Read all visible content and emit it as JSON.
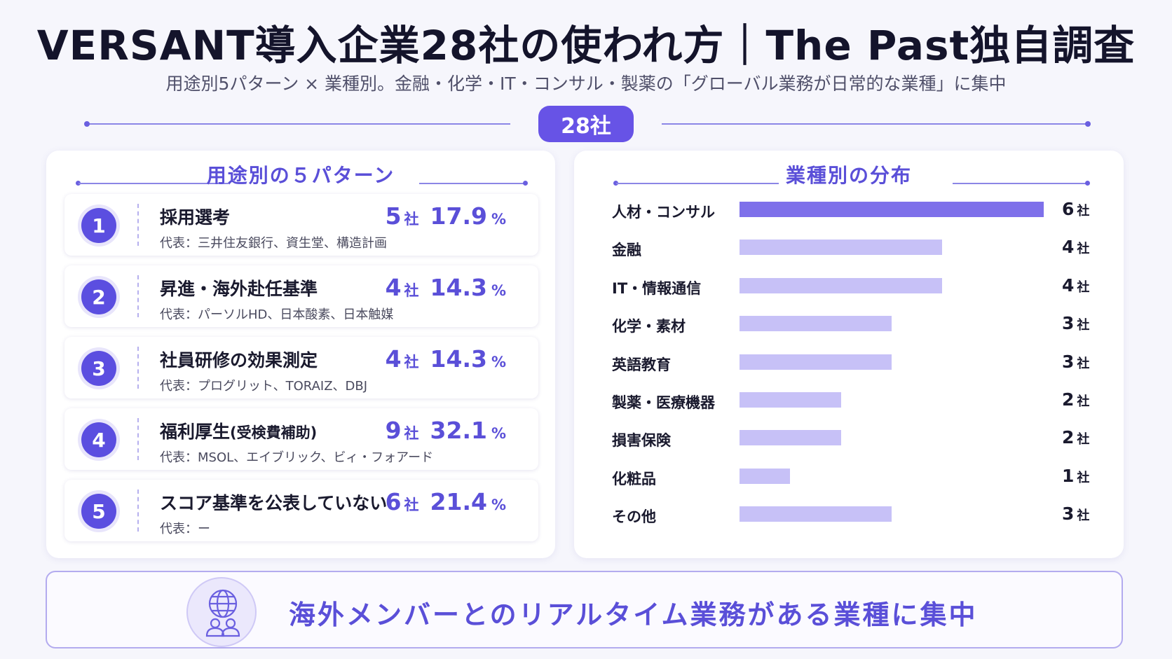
{
  "header": {
    "title": "VERSANT導入企業28社の使われ方｜The Past独自調査",
    "subtitle": "用途別5パターン × 業種別。金融・化学・IT・コンサル・製薬の「グローバル業務が日常的な業種」に集中",
    "total_badge": "28社"
  },
  "left_panel": {
    "title": "用途別の５パターン",
    "patterns": [
      {
        "num": "1",
        "name": "採用選考",
        "name_sub": "",
        "count": "5",
        "unit": "社",
        "percent": "17.9",
        "percent_unit": "%",
        "rep": "代表：三井住友銀行、資生堂、構造計画"
      },
      {
        "num": "2",
        "name": "昇進・海外赴任基準",
        "name_sub": "",
        "count": "4",
        "unit": "社",
        "percent": "14.3",
        "percent_unit": "%",
        "rep": "代表：パーソルHD、日本酸素、日本触媒"
      },
      {
        "num": "3",
        "name": "社員研修の効果測定",
        "name_sub": "",
        "count": "4",
        "unit": "社",
        "percent": "14.3",
        "percent_unit": "%",
        "rep": "代表：プログリット、TORAIZ、DBJ"
      },
      {
        "num": "4",
        "name": "福利厚生",
        "name_sub": "(受検費補助)",
        "count": "9",
        "unit": "社",
        "percent": "32.1",
        "percent_unit": "%",
        "rep": "代表：MSOL、エイブリック、ビィ・フォアード"
      },
      {
        "num": "5",
        "name": "スコア基準を公表していない",
        "name_sub": "",
        "count": "6",
        "unit": "社",
        "percent": "21.4",
        "percent_unit": "%",
        "rep": "代表：ー"
      }
    ]
  },
  "right_panel": {
    "title": "業種別の分布",
    "unit": "社"
  },
  "chart_data": {
    "type": "bar",
    "orientation": "horizontal",
    "title": "業種別の分布",
    "categories": [
      "人材・コンサル",
      "金融",
      "IT・情報通信",
      "化学・素材",
      "英語教育",
      "製薬・医療機器",
      "損害保険",
      "化粧品",
      "その他"
    ],
    "values": [
      6,
      4,
      4,
      3,
      3,
      2,
      2,
      1,
      3
    ],
    "value_unit": "社",
    "xlim": [
      0,
      6
    ],
    "colors": {
      "highlight": "#7e70ea",
      "default": "#c7c1f7"
    },
    "grid": false
  },
  "footer": {
    "message": "海外メンバーとのリアルタイム業務がある業種に集中",
    "icon": "globe-people-icon"
  },
  "colors": {
    "accent": "#5a4fd8",
    "badge": "#6753e6",
    "background": "#f6f6fc"
  }
}
